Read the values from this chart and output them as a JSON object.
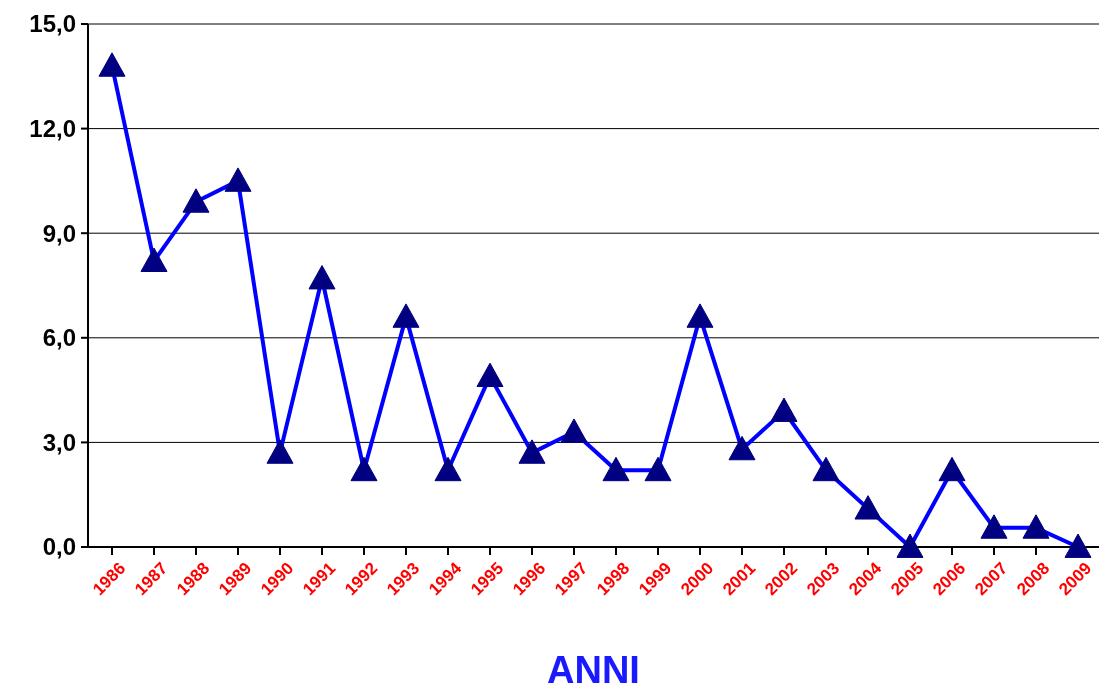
{
  "chart_data": {
    "type": "line",
    "xlabel": "ANNI",
    "categories": [
      "1986",
      "1987",
      "1988",
      "1989",
      "1990",
      "1991",
      "1992",
      "1993",
      "1994",
      "1995",
      "1996",
      "1997",
      "1998",
      "1999",
      "2000",
      "2001",
      "2002",
      "2003",
      "2004",
      "2005",
      "2006",
      "2007",
      "2008",
      "2009"
    ],
    "series": [
      {
        "color": "#0000ff",
        "values": [
          13.8,
          8.2,
          9.9,
          10.5,
          2.7,
          7.7,
          2.2,
          6.6,
          2.2,
          4.9,
          2.7,
          3.3,
          2.2,
          2.2,
          6.6,
          2.8,
          3.9,
          2.2,
          1.1,
          0,
          2.2,
          0.55,
          0.55,
          0
        ]
      }
    ],
    "ylim": [
      0,
      15
    ],
    "yticks": [
      {
        "value": 0,
        "label": "0,0"
      },
      {
        "value": 3,
        "label": "3,0"
      },
      {
        "value": 6,
        "label": "6,0"
      },
      {
        "value": 9,
        "label": "9,0"
      },
      {
        "value": 12,
        "label": "12,0"
      },
      {
        "value": 15,
        "label": "15,0"
      }
    ],
    "grid": "y",
    "marker": "triangle",
    "line_style": "solid"
  }
}
